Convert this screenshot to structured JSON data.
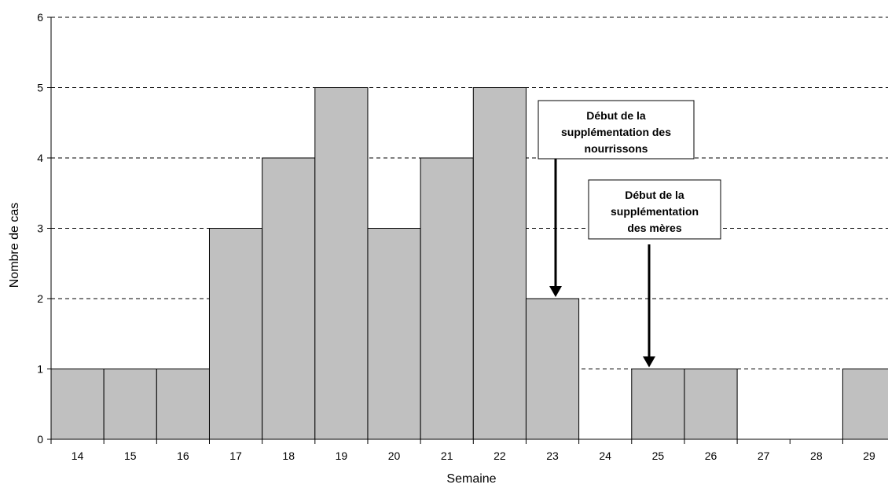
{
  "chart_data": {
    "type": "bar",
    "categories": [
      "14",
      "15",
      "16",
      "17",
      "18",
      "19",
      "20",
      "21",
      "22",
      "23",
      "24",
      "25",
      "26",
      "27",
      "28",
      "29"
    ],
    "values": [
      1,
      1,
      1,
      3,
      4,
      5,
      3,
      4,
      5,
      2,
      0,
      1,
      1,
      0,
      0,
      1
    ],
    "xlabel": "Semaine",
    "ylabel": "Nombre de cas",
    "ylim": [
      0,
      6
    ],
    "yticks": [
      0,
      1,
      2,
      3,
      4,
      5,
      6
    ],
    "grid": "horizontal dashed",
    "bar_color": "#c0c0c0",
    "annotations": [
      {
        "lines": [
          "Début de la",
          "supplémentation des",
          "nourrissons"
        ],
        "target_week": "23",
        "target_value": 2
      },
      {
        "lines": [
          "Début de la",
          "supplémentation",
          "des mères"
        ],
        "target_week": "25",
        "target_value": 1
      }
    ]
  }
}
